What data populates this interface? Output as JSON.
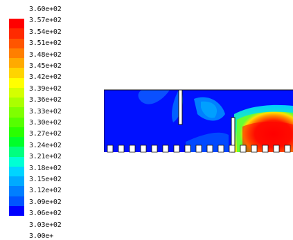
{
  "legend": {
    "labels": [
      "3.60e+02",
      "3.57e+02",
      "3.54e+02",
      "3.51e+02",
      "3.48e+02",
      "3.45e+02",
      "3.42e+02",
      "3.39e+02",
      "3.36e+02",
      "3.33e+02",
      "3.30e+02",
      "3.27e+02",
      "3.24e+02",
      "3.21e+02",
      "3.18e+02",
      "3.15e+02",
      "3.12e+02",
      "3.09e+02",
      "3.06e+02",
      "3.03e+02",
      "3.00e+"
    ],
    "colors": [
      "#ff0000",
      "#ff2a00",
      "#ff5500",
      "#ff7f00",
      "#ffaa00",
      "#ffd400",
      "#ffff00",
      "#d4ff00",
      "#aaff00",
      "#7fff00",
      "#55ff00",
      "#2aff00",
      "#00ff2a",
      "#00ff7f",
      "#00ffd4",
      "#00d4ff",
      "#00aaff",
      "#007fff",
      "#0055ff",
      "#0000ff"
    ]
  },
  "field": {
    "background_color": "#0000ff",
    "hot_color": "#ff0000"
  }
}
